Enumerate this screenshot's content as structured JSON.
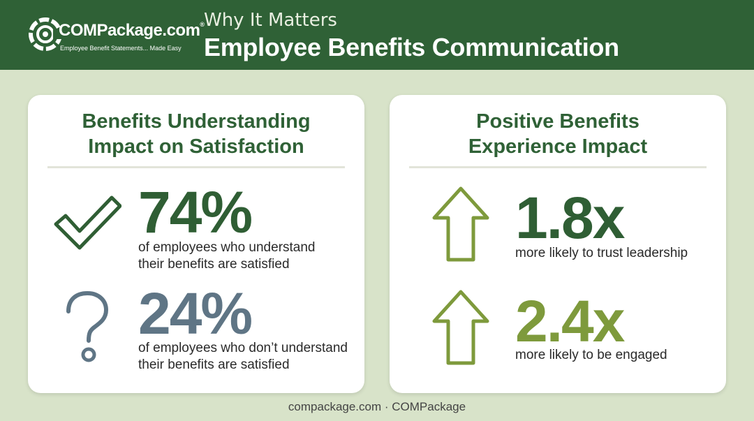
{
  "header": {
    "logo_text": "COMPackage.com",
    "logo_reg": "®",
    "logo_tagline": "Employee Benefit Statements... Made Easy",
    "subtitle": "Why It Matters",
    "title": "Employee Benefits Communication"
  },
  "left_card": {
    "title_line1": "Benefits Understanding",
    "title_line2": "Impact on Satisfaction",
    "stats": [
      {
        "value": "74%",
        "line1": "of employees who understand",
        "line2": "their benefits are satisfied",
        "icon": "checkmark-icon",
        "color": "#2f5e34"
      },
      {
        "value": "24%",
        "line1": "of employees who don’t understand",
        "line2": "their benefits are satisfied",
        "icon": "question-mark-icon",
        "color": "#5f7585"
      }
    ]
  },
  "right_card": {
    "title_line1": "Positive Benefits",
    "title_line2": "Experience Impact",
    "stats": [
      {
        "value": "1.8x",
        "line1": "more likely to trust leadership",
        "icon": "up-arrow-icon",
        "color": "#2f5e34"
      },
      {
        "value": "2.4x",
        "line1": "more likely to be engaged",
        "icon": "up-arrow-icon",
        "color": "#7e9a3c"
      }
    ]
  },
  "footer": {
    "text": "compackage.com · COMPackage"
  },
  "colors": {
    "header_bg": "#2f6136",
    "page_bg": "#d8e3c9",
    "dark_green": "#2f5e34",
    "slate": "#5f7585",
    "olive": "#7e9a3c"
  }
}
